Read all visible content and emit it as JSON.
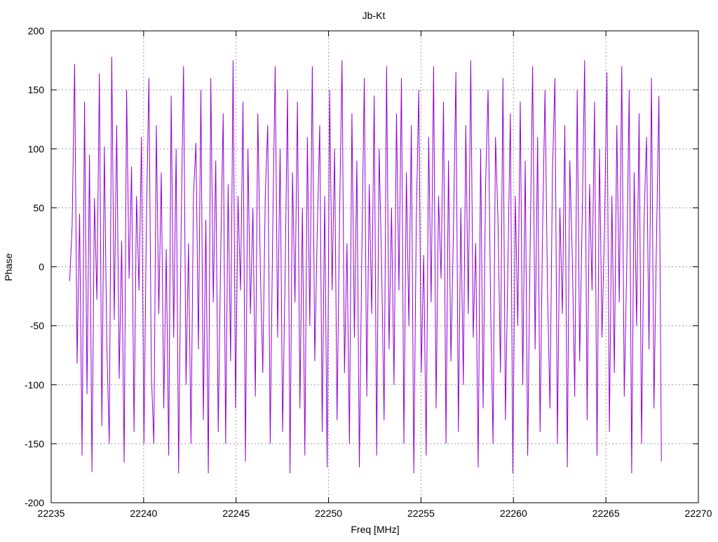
{
  "chart_data": {
    "type": "line",
    "title": "Jb-Kt",
    "xlabel": "Freq [MHz]",
    "ylabel": "Phase",
    "xlim": [
      22235,
      22270
    ],
    "ylim": [
      -200,
      200
    ],
    "xticks": [
      22235,
      22240,
      22245,
      22250,
      22255,
      22260,
      22265,
      22270
    ],
    "yticks": [
      -200,
      -150,
      -100,
      -50,
      0,
      50,
      100,
      150,
      200
    ],
    "grid": true,
    "x_range": [
      22236,
      22268
    ],
    "series": [
      {
        "color": "#9400d3",
        "values": [
          -12,
          35,
          172,
          -82,
          45,
          -160,
          140,
          -108,
          95,
          -174,
          58,
          -28,
          164,
          -135,
          102,
          -66,
          -150,
          178,
          -45,
          120,
          -95,
          22,
          -166,
          150,
          -10,
          85,
          -140,
          60,
          -20,
          110,
          -150,
          40,
          160,
          -90,
          -150,
          120,
          -40,
          80,
          -120,
          15,
          -160,
          145,
          -60,
          100,
          -175,
          30,
          170,
          -100,
          20,
          -150,
          60,
          105,
          -70,
          150,
          -130,
          40,
          -175,
          160,
          -30,
          90,
          -140,
          10,
          130,
          -150,
          70,
          -80,
          175,
          -120,
          60,
          -20,
          140,
          -165,
          100,
          -40,
          50,
          -110,
          130,
          0,
          -90,
          60,
          120,
          -150,
          30,
          170,
          -60,
          100,
          -140,
          -10,
          150,
          -175,
          80,
          -30,
          140,
          -120,
          50,
          -160,
          110,
          -50,
          170,
          -80,
          30,
          120,
          -140,
          60,
          -170,
          150,
          -20,
          100,
          -130,
          40,
          175,
          -90,
          20,
          -150,
          130,
          -60,
          90,
          -170,
          10,
          160,
          -110,
          70,
          -40,
          145,
          -160,
          100,
          0,
          -130,
          170,
          -70,
          50,
          -100,
          130,
          -20,
          160,
          -150,
          80,
          -50,
          120,
          -175,
          40,
          150,
          -90,
          10,
          -160,
          110,
          -30,
          170,
          -120,
          60,
          -10,
          140,
          -150,
          90,
          -80,
          30,
          165,
          -140,
          50,
          -100,
          120,
          -40,
          175,
          -60,
          20,
          -170,
          100,
          -120,
          70,
          150,
          -30,
          -150,
          110,
          40,
          -90,
          160,
          -130,
          0,
          130,
          -175,
          60,
          -50,
          140,
          -100,
          90,
          -160,
          20,
          170,
          -70,
          110,
          -140,
          30,
          150,
          -20,
          -120,
          80,
          160,
          -150,
          50,
          -40,
          120,
          -170,
          90,
          10,
          -110,
          150,
          -80,
          40,
          175,
          -130,
          70,
          -20,
          140,
          -160,
          100,
          -60,
          30,
          165,
          -140,
          60,
          -90,
          120,
          -30,
          170,
          -110,
          0,
          150,
          -175,
          80,
          -50,
          130,
          -150,
          40,
          110,
          -70,
          160,
          -120,
          20,
          145,
          -165
        ]
      }
    ]
  }
}
